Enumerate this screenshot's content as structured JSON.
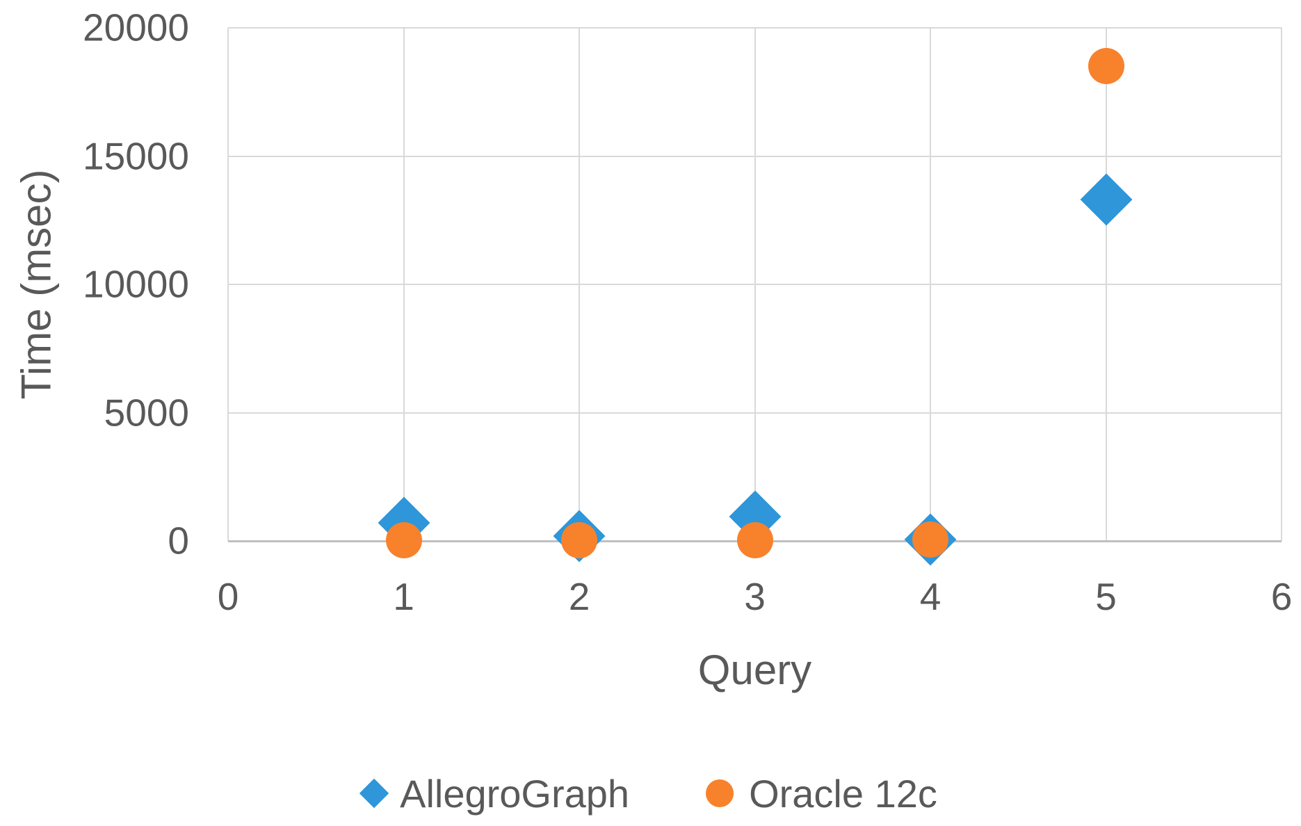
{
  "chart_data": {
    "type": "scatter",
    "title": "",
    "xlabel": "Query",
    "ylabel": "Time (msec)",
    "xlim": [
      0,
      6
    ],
    "ylim": [
      0,
      20000
    ],
    "x_ticks": [
      0,
      1,
      2,
      3,
      4,
      5,
      6
    ],
    "y_ticks": [
      0,
      5000,
      10000,
      15000,
      20000
    ],
    "grid": true,
    "legend_position": "bottom-center",
    "series": [
      {
        "name": "AllegroGraph",
        "marker": "diamond",
        "color": "#2E96D9",
        "points": [
          [
            1,
            700
          ],
          [
            2,
            200
          ],
          [
            3,
            950
          ],
          [
            4,
            50
          ],
          [
            5,
            13300
          ]
        ]
      },
      {
        "name": "Oracle 12c",
        "marker": "circle",
        "color": "#F8812C",
        "points": [
          [
            1,
            30
          ],
          [
            2,
            20
          ],
          [
            3,
            15
          ],
          [
            4,
            60
          ],
          [
            5,
            18500
          ]
        ]
      }
    ]
  },
  "colors": {
    "blue_series": "#2E96D9",
    "orange_series": "#F8812C",
    "text": "#595959",
    "gridline": "#D9D9D9",
    "axis_line": "#BFBFBF",
    "background": "#FFFFFF"
  }
}
